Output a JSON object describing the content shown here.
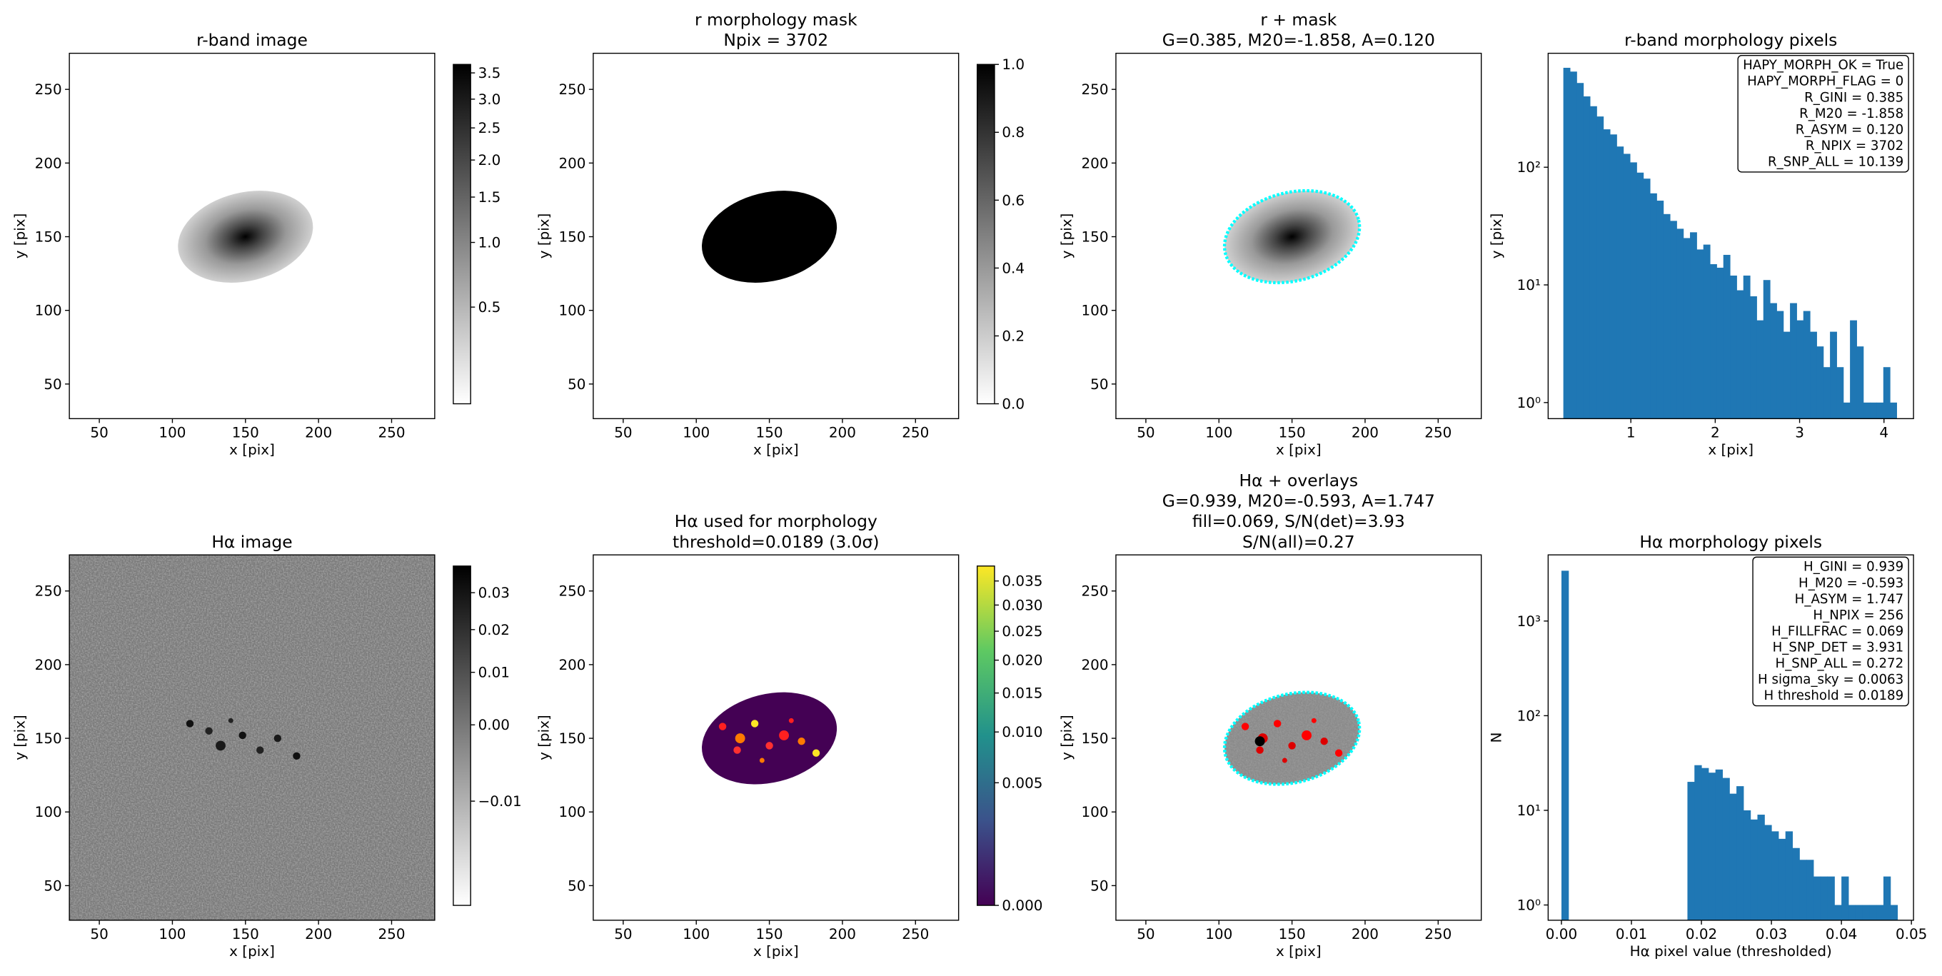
{
  "chart_data": [
    {
      "type": "image",
      "title": [
        "r-band image"
      ],
      "xlabel": "x [pix]",
      "ylabel": "y [pix]",
      "xlim": [
        29.5,
        279.5
      ],
      "ylim": [
        26.5,
        274.5
      ],
      "xticks": [
        50,
        100,
        150,
        200,
        250
      ],
      "yticks": [
        50,
        100,
        150,
        200,
        250
      ],
      "colorbar": {
        "cmap": "gray_r",
        "scale": "sqrt",
        "clim": [
          0.22,
          3.67
        ],
        "ticks": [
          0.5,
          {
            "value": 1,
            "label": "1.0"
          },
          1.5,
          {
            "value": 2,
            "label": "2.0"
          },
          2.5,
          {
            "value": 3,
            "label": "3.0"
          },
          3.5
        ]
      }
    },
    {
      "type": "image",
      "title": [
        "r morphology mask",
        "Npix = 3702"
      ],
      "xlabel": "x [pix]",
      "ylabel": "y [pix]",
      "xlim": [
        29.5,
        279.5
      ],
      "ylim": [
        26.5,
        274.5
      ],
      "xticks": [
        50,
        100,
        150,
        200,
        250
      ],
      "yticks": [
        50,
        100,
        150,
        200,
        250
      ],
      "colorbar": {
        "cmap": "gray_r",
        "scale": "linear",
        "clim": [
          0,
          1
        ],
        "ticks": [
          {
            "value": 0,
            "label": "0.0"
          },
          0.2,
          0.4,
          0.6,
          0.8,
          {
            "value": 1,
            "label": "1.0"
          }
        ]
      }
    },
    {
      "type": "image",
      "title": [
        "r + mask",
        "G=0.385, M20=-1.858, A=0.120"
      ],
      "xlabel": "x [pix]",
      "ylabel": "y [pix]",
      "xlim": [
        29.5,
        279.5
      ],
      "ylim": [
        26.5,
        274.5
      ],
      "xticks": [
        50,
        100,
        150,
        200,
        250
      ],
      "yticks": [
        50,
        100,
        150,
        200,
        250
      ]
    },
    {
      "type": "histogram",
      "title": [
        "r-band morphology pixels"
      ],
      "xlabel": "x [pix]",
      "ylabel": "y [pix]",
      "color": "#1f77b4",
      "log_y": true,
      "xlim": [
        0.02,
        4.35
      ],
      "ylim": [
        0.73,
        930
      ],
      "xticks": [
        1,
        2,
        3,
        4
      ],
      "yticks": [
        {
          "value": 1,
          "label": "10⁰"
        },
        {
          "value": 10,
          "label": "10¹"
        },
        {
          "value": 100,
          "label": "10²"
        }
      ],
      "bins": [
        0.2,
        0.279,
        0.358,
        0.437,
        0.516,
        0.595,
        0.674,
        0.753,
        0.832,
        0.911,
        0.99,
        1.069,
        1.148,
        1.227,
        1.306,
        1.385,
        1.464,
        1.543,
        1.622,
        1.701,
        1.78,
        1.859,
        1.938,
        2.017,
        2.096,
        2.175,
        2.254,
        2.333,
        2.412,
        2.491,
        2.57,
        2.649,
        2.728,
        2.807,
        2.886,
        2.965,
        3.044,
        3.123,
        3.202,
        3.281,
        3.36,
        3.439,
        3.518,
        3.597,
        3.676,
        3.755,
        3.834,
        3.913,
        3.992,
        4.071,
        4.15
      ],
      "counts": [
        700,
        650,
        520,
        400,
        330,
        270,
        210,
        190,
        150,
        130,
        110,
        90,
        80,
        60,
        52,
        40,
        35,
        30,
        25,
        28,
        20,
        22,
        15,
        14,
        18,
        12,
        9,
        12,
        8,
        5,
        11,
        7,
        6,
        4,
        7,
        5,
        6,
        4,
        3,
        2,
        4,
        2,
        1,
        5,
        3,
        1,
        1,
        1,
        2,
        1
      ],
      "annotation": [
        "HAPY_MORPH_OK = True",
        "HAPY_MORPH_FLAG = 0",
        "R_GINI = 0.385",
        "R_M20 = -1.858",
        "R_ASYM = 0.120",
        "R_NPIX = 3702",
        "R_SNP_ALL = 10.139"
      ]
    },
    {
      "type": "image",
      "title": [
        "Hα image"
      ],
      "xlabel": "x [pix]",
      "ylabel": "y [pix]",
      "xlim": [
        29.5,
        279.5
      ],
      "ylim": [
        26.5,
        274.5
      ],
      "xticks": [
        50,
        100,
        150,
        200,
        250
      ],
      "yticks": [
        50,
        100,
        150,
        200,
        250
      ],
      "colorbar": {
        "cmap": "gray_r",
        "scale": "sqrt",
        "clim": [
          -0.015,
          0.038
        ],
        "ticks": [
          {
            "value": -0.01,
            "label": "−0.01"
          },
          {
            "value": 0,
            "label": "0.00"
          },
          0.01,
          0.02,
          0.03
        ]
      }
    },
    {
      "type": "image",
      "title": [
        "Hα used for morphology",
        "threshold=0.0189 (3.0σ)"
      ],
      "xlabel": "x [pix]",
      "ylabel": "y [pix]",
      "xlim": [
        29.5,
        279.5
      ],
      "ylim": [
        26.5,
        274.5
      ],
      "xticks": [
        50,
        100,
        150,
        200,
        250
      ],
      "yticks": [
        50,
        100,
        150,
        200,
        250
      ],
      "colorbar": {
        "cmap": "viridis",
        "scale": "sqrt",
        "clim": [
          0,
          0.0383
        ],
        "ticks": [
          {
            "value": 0,
            "label": "0.000"
          },
          0.005,
          {
            "value": 0.01,
            "label": "0.010"
          },
          0.015,
          {
            "value": 0.02,
            "label": "0.020"
          },
          0.025,
          {
            "value": 0.03,
            "label": "0.030"
          },
          0.035
        ]
      }
    },
    {
      "type": "image",
      "title": [
        "Hα + overlays",
        "G=0.939, M20=-0.593, A=1.747",
        "fill=0.069, S/N(det)=3.93",
        "S/N(all)=0.27"
      ],
      "xlabel": "x [pix]",
      "ylabel": "y [pix]",
      "xlim": [
        29.5,
        279.5
      ],
      "ylim": [
        26.5,
        274.5
      ],
      "xticks": [
        50,
        100,
        150,
        200,
        250
      ],
      "yticks": [
        50,
        100,
        150,
        200,
        250
      ]
    },
    {
      "type": "histogram",
      "title": [
        "Hα morphology pixels"
      ],
      "xlabel": "Hα pixel value (thresholded)",
      "ylabel": "N",
      "color": "#1f77b4",
      "log_y": true,
      "xlim": [
        -0.0019,
        0.0503
      ],
      "ylim": [
        0.69,
        5000
      ],
      "xticks": [
        {
          "value": 0,
          "label": "0.00"
        },
        0.01,
        0.02,
        0.03,
        0.04,
        0.05
      ],
      "yticks": [
        {
          "value": 1,
          "label": "10⁰"
        },
        {
          "value": 10,
          "label": "10¹"
        },
        {
          "value": 100,
          "label": "10²"
        },
        {
          "value": 1000,
          "label": "10³"
        }
      ],
      "bins": [
        0,
        0.001,
        0.002,
        0.003,
        0.004,
        0.005,
        0.006,
        0.007,
        0.008,
        0.009,
        0.01,
        0.011,
        0.012,
        0.013,
        0.014,
        0.015,
        0.016,
        0.017,
        0.018,
        0.019,
        0.02,
        0.021,
        0.022,
        0.023,
        0.024,
        0.025,
        0.026,
        0.027,
        0.028,
        0.029,
        0.03,
        0.031,
        0.032,
        0.033,
        0.034,
        0.035,
        0.036,
        0.037,
        0.038,
        0.039,
        0.04,
        0.041,
        0.042,
        0.043,
        0.044,
        0.045,
        0.046,
        0.047,
        0.048
      ],
      "counts": [
        3400,
        0,
        0,
        0,
        0,
        0,
        0,
        0,
        0,
        0,
        0,
        0,
        0,
        0,
        0,
        0,
        0,
        0,
        20,
        30,
        28,
        25,
        27,
        22,
        15,
        18,
        10,
        8,
        9,
        7,
        6,
        5,
        6,
        4,
        3,
        3,
        2,
        2,
        2,
        1,
        2,
        1,
        1,
        1,
        1,
        1,
        2,
        1
      ],
      "annotation": [
        "H_GINI = 0.939",
        "H_M20 = -0.593",
        "H_ASYM = 1.747",
        "H_NPIX = 256",
        "H_FILLFRAC = 0.069",
        "H_SNP_DET = 3.931",
        "H_SNP_ALL = 0.272",
        "H sigma_sky = 0.0063",
        "H threshold = 0.0189"
      ]
    }
  ]
}
